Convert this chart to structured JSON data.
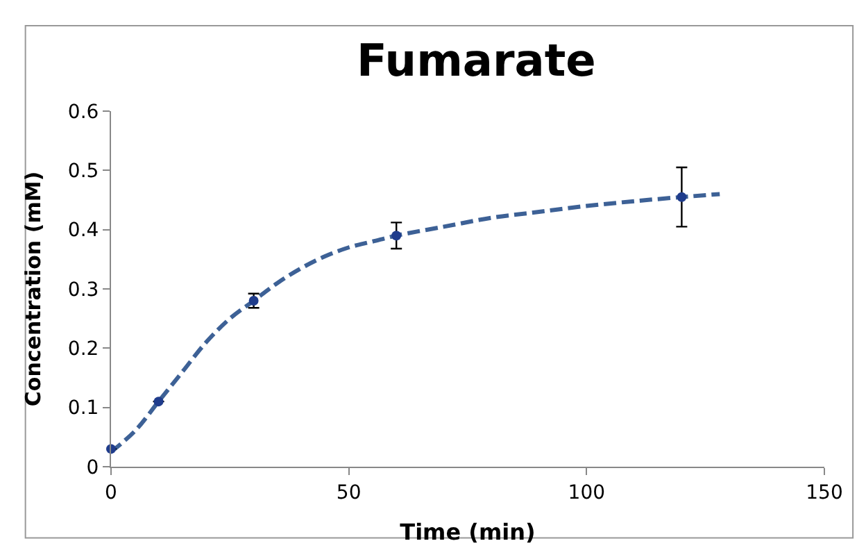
{
  "chart_data": {
    "type": "scatter",
    "title": "Fumarate",
    "xlabel": "Time (min)",
    "ylabel": "Concentration (mM)",
    "xlim": [
      0,
      150
    ],
    "xticks": [
      0,
      50,
      100,
      150
    ],
    "ylim": [
      0,
      0.6
    ],
    "yticks": [
      0,
      0.1,
      0.2,
      0.3,
      0.4,
      0.5,
      0.6
    ],
    "series": [
      {
        "color": "#1f3c8c",
        "marker": "circle",
        "x": [
          0,
          10,
          30,
          60,
          120
        ],
        "values": [
          0.03,
          0.11,
          0.28,
          0.39,
          0.455
        ],
        "errors": [
          null,
          null,
          0.012,
          0.022,
          0.05
        ]
      },
      {
        "type": "line",
        "color": "#3d6196",
        "line_style": "dashed",
        "marker": "none",
        "x": [
          0,
          5,
          10,
          15,
          20,
          25,
          30,
          35,
          40,
          45,
          50,
          55,
          60,
          70,
          80,
          90,
          100,
          110,
          120,
          128
        ],
        "values": [
          0.025,
          0.06,
          0.11,
          0.16,
          0.21,
          0.25,
          0.28,
          0.31,
          0.335,
          0.355,
          0.37,
          0.38,
          0.39,
          0.405,
          0.42,
          0.43,
          0.44,
          0.448,
          0.455,
          0.46
        ]
      }
    ]
  }
}
